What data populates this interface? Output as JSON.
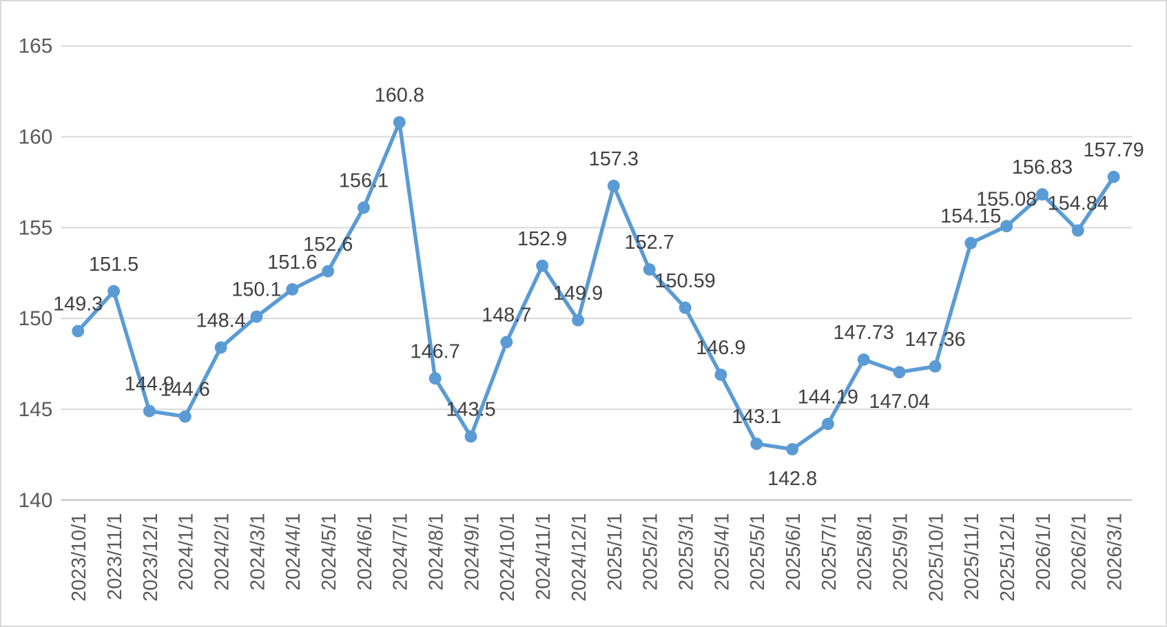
{
  "chart_data": {
    "type": "line",
    "title": "",
    "xlabel": "",
    "ylabel": "",
    "categories": [
      "2023/10/1",
      "2023/11/1",
      "2023/12/1",
      "2024/1/1",
      "2024/2/1",
      "2024/3/1",
      "2024/4/1",
      "2024/5/1",
      "2024/6/1",
      "2024/7/1",
      "2024/8/1",
      "2024/9/1",
      "2024/10/1",
      "2024/11/1",
      "2024/12/1",
      "2025/1/1",
      "2025/2/1",
      "2025/3/1",
      "2025/4/1",
      "2025/5/1",
      "2025/6/1",
      "2025/7/1",
      "2025/8/1",
      "2025/9/1",
      "2025/10/1",
      "2025/11/1",
      "2025/12/1",
      "2026/1/1",
      "2026/2/1",
      "2026/3/1"
    ],
    "values": [
      149.3,
      151.5,
      144.9,
      144.6,
      148.4,
      150.1,
      151.6,
      152.6,
      156.1,
      160.8,
      146.7,
      143.5,
      148.7,
      152.9,
      149.9,
      157.3,
      152.7,
      150.59,
      146.9,
      143.1,
      142.8,
      144.19,
      147.73,
      147.04,
      147.36,
      154.15,
      155.08,
      156.83,
      154.84,
      157.79
    ],
    "data_labels": [
      "149.3",
      "151.5",
      "144.9",
      "144.6",
      "148.4",
      "150.1",
      "151.6",
      "152.6",
      "156.1",
      "160.8",
      "146.7",
      "143.5",
      "148.7",
      "152.9",
      "149.9",
      "157.3",
      "152.7",
      "150.59",
      "146.9",
      "143.1",
      "142.8",
      "144.19",
      "147.73",
      "147.04",
      "147.36",
      "154.15",
      "155.08",
      "156.83",
      "154.84",
      "157.79"
    ],
    "labels_below_indexes": [
      20,
      23
    ],
    "yticks": [
      "140",
      "145",
      "150",
      "155",
      "160",
      "165"
    ],
    "ylim": [
      140,
      165
    ],
    "grid": true,
    "legend": false,
    "line_color": "#5B9BD5",
    "marker_color": "#5B9BD5",
    "label_color": "#404040",
    "axis_text_color": "#595959",
    "gridline_color": "#D9D9D9",
    "axis_line_color": "#BFBFBF",
    "border_color": "#D9D9D9",
    "background_color": "#FFFFFF"
  }
}
